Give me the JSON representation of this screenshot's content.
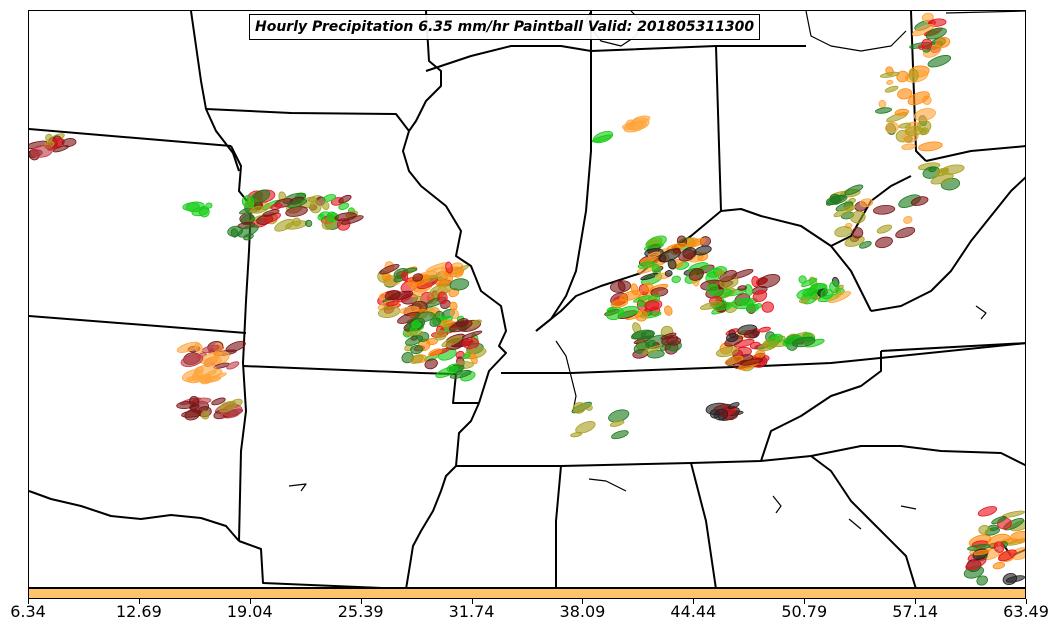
{
  "title": "Hourly Precipitation 6.35 mm/hr Paintball Valid: 201805311300",
  "colorbar": {
    "color": "#ffc36b",
    "ticks": [
      "6.34",
      "12.69",
      "19.04",
      "25.39",
      "31.74",
      "38.09",
      "44.44",
      "50.79",
      "57.14",
      "63.49"
    ]
  },
  "palette": {
    "red": "#e8141e",
    "orange": "#ff8a0a",
    "lightorange": "#ffa53a",
    "green": "#16cc16",
    "darkgreen": "#1f7a1f",
    "olive": "#a8a020",
    "maroon": "#7a1616",
    "rose": "#c0404a",
    "dark": "#222222"
  }
}
